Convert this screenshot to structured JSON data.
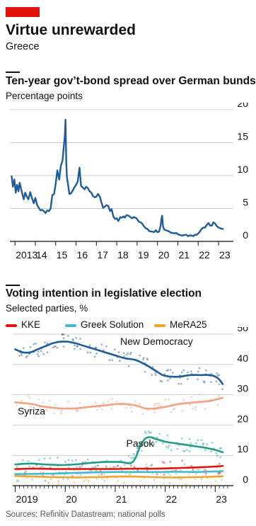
{
  "header": {
    "title": "Virtue unrewarded",
    "subtitle": "Greece"
  },
  "colors": {
    "brand_red": "#e3120b",
    "spread_line": "#1f5c99",
    "gridline": "#d0d0d0",
    "new_democracy": "#1f5c99",
    "syriza": "#f4a283",
    "pasok": "#1f9e8e",
    "kke": "#e3120b",
    "greek_solution": "#3ebcd2",
    "mera25": "#f0a32f"
  },
  "source": "Sources: Refinitiv Datastream; national polls",
  "chart_data": [
    {
      "type": "line",
      "title": "Ten-year gov’t-bond spread over German bunds",
      "subtitle": "Percentage points",
      "ylim": [
        0,
        20
      ],
      "yticks": [
        0,
        5,
        10,
        15,
        20
      ],
      "xlim": [
        2012.75,
        2023.45
      ],
      "xtick_labels": [
        {
          "x": 2013,
          "label": "2013"
        },
        {
          "x": 2014,
          "label": "14"
        },
        {
          "x": 2015,
          "label": "15"
        },
        {
          "x": 2016,
          "label": "16"
        },
        {
          "x": 2017,
          "label": "17"
        },
        {
          "x": 2018,
          "label": "18"
        },
        {
          "x": 2019,
          "label": "19"
        },
        {
          "x": 2020,
          "label": "20"
        },
        {
          "x": 2021,
          "label": "21"
        },
        {
          "x": 2022,
          "label": "22"
        },
        {
          "x": 2023,
          "label": "23"
        }
      ],
      "grid": true,
      "series": [
        {
          "name": "",
          "x": [
            2012.83,
            2012.9,
            2012.97,
            2013.04,
            2013.1,
            2013.17,
            2013.23,
            2013.3,
            2013.37,
            2013.43,
            2013.5,
            2013.58,
            2013.66,
            2013.75,
            2013.83,
            2013.92,
            2014.0,
            2014.08,
            2014.17,
            2014.25,
            2014.33,
            2014.42,
            2014.5,
            2014.58,
            2014.67,
            2014.75,
            2014.83,
            2014.92,
            2015.0,
            2015.08,
            2015.17,
            2015.25,
            2015.33,
            2015.4,
            2015.45,
            2015.48,
            2015.5,
            2015.52,
            2015.55,
            2015.6,
            2015.67,
            2015.75,
            2015.83,
            2015.92,
            2016.0,
            2016.08,
            2016.17,
            2016.25,
            2016.33,
            2016.42,
            2016.5,
            2016.58,
            2016.67,
            2016.75,
            2016.83,
            2016.92,
            2017.0,
            2017.08,
            2017.17,
            2017.25,
            2017.33,
            2017.42,
            2017.5,
            2017.58,
            2017.67,
            2017.75,
            2017.83,
            2017.92,
            2018.0,
            2018.08,
            2018.17,
            2018.25,
            2018.33,
            2018.4,
            2018.45,
            2018.5,
            2018.58,
            2018.67,
            2018.75,
            2018.83,
            2018.92,
            2019.0,
            2019.08,
            2019.17,
            2019.25,
            2019.33,
            2019.42,
            2019.5,
            2019.58,
            2019.67,
            2019.75,
            2019.83,
            2019.92,
            2020.0,
            2020.08,
            2020.15,
            2020.2,
            2020.23,
            2020.27,
            2020.33,
            2020.42,
            2020.5,
            2020.58,
            2020.67,
            2020.75,
            2020.83,
            2020.92,
            2021.0,
            2021.08,
            2021.17,
            2021.25,
            2021.33,
            2021.42,
            2021.5,
            2021.58,
            2021.67,
            2021.75,
            2021.83,
            2021.92,
            2022.0,
            2022.08,
            2022.17,
            2022.25,
            2022.33,
            2022.42,
            2022.5,
            2022.58,
            2022.67,
            2022.75,
            2022.83,
            2022.92,
            2023.0,
            2023.08,
            2023.17,
            2023.25
          ],
          "values": [
            10.0,
            8.3,
            9.4,
            7.4,
            8.6,
            7.6,
            8.9,
            8.0,
            7.1,
            6.4,
            7.4,
            6.8,
            6.4,
            7.5,
            6.6,
            5.8,
            6.6,
            5.6,
            5.1,
            4.7,
            4.8,
            4.6,
            4.3,
            4.7,
            4.6,
            5.0,
            7.0,
            7.2,
            8.8,
            10.8,
            9.4,
            11.5,
            12.2,
            14.5,
            16.0,
            18.5,
            15.0,
            12.0,
            9.8,
            8.8,
            7.2,
            7.3,
            7.7,
            8.2,
            8.6,
            9.1,
            11.2,
            8.4,
            8.2,
            7.9,
            8.3,
            8.1,
            7.6,
            7.4,
            6.9,
            6.7,
            6.8,
            7.2,
            6.8,
            5.9,
            5.1,
            5.3,
            5.5,
            5.4,
            4.6,
            4.9,
            3.8,
            3.4,
            3.5,
            3.1,
            3.7,
            3.6,
            3.8,
            3.6,
            3.9,
            4.0,
            3.9,
            3.7,
            3.5,
            3.7,
            3.6,
            3.4,
            3.0,
            2.9,
            2.7,
            2.3,
            2.0,
            1.9,
            1.6,
            1.5,
            1.5,
            1.4,
            1.7,
            1.4,
            1.5,
            2.3,
            3.5,
            3.9,
            2.3,
            1.8,
            1.7,
            1.6,
            1.5,
            1.3,
            1.3,
            1.2,
            1.3,
            1.1,
            1.0,
            0.9,
            0.9,
            1.0,
            1.0,
            0.8,
            0.9,
            0.9,
            0.8,
            1.0,
            1.0,
            1.2,
            1.5,
            1.9,
            2.1,
            2.1,
            2.5,
            2.8,
            2.4,
            2.4,
            2.9,
            2.7,
            2.3,
            2.1,
            2.0,
            1.9,
            1.9
          ]
        }
      ]
    },
    {
      "type": "line",
      "title": "Voting intention in legislative election",
      "subtitle": "Selected parties, %",
      "ylim": [
        0,
        50
      ],
      "yticks": [
        0,
        10,
        20,
        30,
        40,
        50
      ],
      "xlim": [
        2018.95,
        2023.25
      ],
      "xtick_labels": [
        {
          "x": 2019,
          "label": "2019"
        },
        {
          "x": 2020,
          "label": "20"
        },
        {
          "x": 2021,
          "label": "21"
        },
        {
          "x": 2022,
          "label": "22"
        },
        {
          "x": 2023,
          "label": "23"
        }
      ],
      "grid": true,
      "legend": [
        "KKE",
        "Greek Solution",
        "MeRA25"
      ],
      "legend_position": "top-left",
      "series": [
        {
          "name": "New Democracy",
          "label_at": [
            2021.1,
            46.5
          ],
          "x": [
            2019.0,
            2019.15,
            2019.3,
            2019.45,
            2019.6,
            2019.75,
            2019.9,
            2020.05,
            2020.2,
            2020.4,
            2020.6,
            2020.8,
            2021.0,
            2021.2,
            2021.4,
            2021.6,
            2021.8,
            2021.95,
            2022.1,
            2022.3,
            2022.5,
            2022.7,
            2022.9,
            2023.05,
            2023.15
          ],
          "values": [
            45,
            44,
            44,
            45,
            46,
            47,
            47.5,
            47.5,
            47,
            46,
            45,
            44,
            43,
            42,
            41.5,
            40,
            38,
            36.5,
            36,
            36,
            36.5,
            36.5,
            36.5,
            35.5,
            33.5
          ]
        },
        {
          "name": "Syriza",
          "label_at": [
            2019.05,
            23.5
          ],
          "x": [
            2019.0,
            2019.3,
            2019.6,
            2019.9,
            2020.2,
            2020.5,
            2020.8,
            2021.1,
            2021.4,
            2021.6,
            2021.8,
            2022.0,
            2022.3,
            2022.6,
            2022.9,
            2023.15
          ],
          "values": [
            27.5,
            27,
            26,
            25.5,
            25.5,
            26,
            26.5,
            27,
            26.5,
            25.5,
            25.5,
            26,
            27,
            27.5,
            28,
            29
          ]
        },
        {
          "name": "Pasok",
          "label_at": [
            2021.22,
            12.8
          ],
          "x": [
            2019.0,
            2019.3,
            2019.6,
            2019.9,
            2020.2,
            2020.5,
            2020.8,
            2021.1,
            2021.3,
            2021.4,
            2021.5,
            2021.6,
            2021.7,
            2021.8,
            2022.0,
            2022.2,
            2022.4,
            2022.6,
            2022.8,
            2023.0,
            2023.15
          ],
          "values": [
            7,
            7.3,
            7,
            6.8,
            7,
            7.5,
            7.8,
            7.8,
            7.4,
            9,
            13,
            15.5,
            16,
            15.5,
            14.5,
            14,
            13.5,
            13,
            12.5,
            11.8,
            11
          ]
        },
        {
          "name": "KKE",
          "x": [
            2019.0,
            2019.4,
            2019.8,
            2020.2,
            2020.6,
            2021.0,
            2021.4,
            2021.8,
            2022.2,
            2022.6,
            2023.0,
            2023.15
          ],
          "values": [
            5.5,
            5.6,
            5.5,
            5.5,
            5.5,
            5.5,
            5.6,
            5.6,
            5.8,
            6,
            6.3,
            6.5
          ]
        },
        {
          "name": "Greek Solution",
          "x": [
            2019.0,
            2019.4,
            2019.8,
            2020.2,
            2020.6,
            2021.0,
            2021.4,
            2021.8,
            2022.2,
            2022.6,
            2023.0,
            2023.15
          ],
          "values": [
            3.8,
            3.9,
            4,
            4.2,
            4.4,
            4.5,
            4.5,
            4.5,
            4.6,
            4.5,
            4.7,
            4.8
          ]
        },
        {
          "name": "MeRA25",
          "x": [
            2019.0,
            2019.4,
            2019.8,
            2020.2,
            2020.6,
            2021.0,
            2021.4,
            2021.8,
            2022.2,
            2022.6,
            2023.0,
            2023.15
          ],
          "values": [
            3.2,
            3,
            2.8,
            2.7,
            2.8,
            3,
            3,
            2.8,
            2.7,
            2.8,
            3,
            3.1
          ]
        }
      ]
    }
  ]
}
